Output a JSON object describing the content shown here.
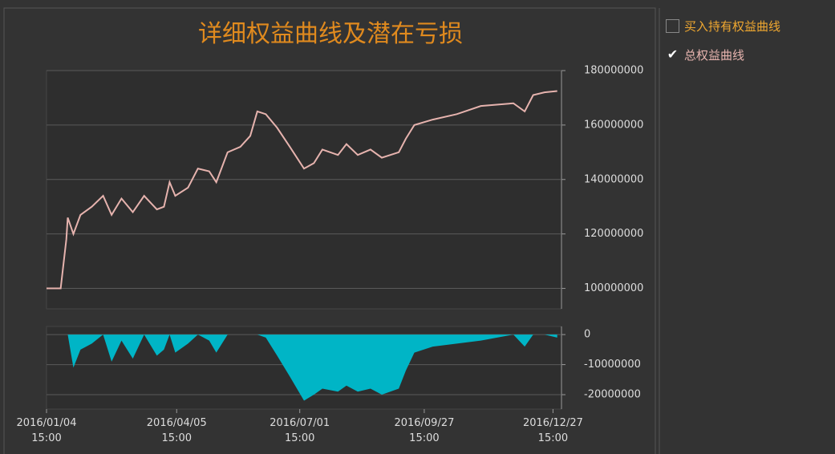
{
  "chart_data": [
    {
      "type": "line",
      "title": "详细权益曲线及潜在亏损",
      "x": [
        "2016-01-04",
        "2016-01-14",
        "2016-01-18",
        "2016-01-19",
        "2016-01-23",
        "2016-01-28",
        "2016-02-05",
        "2016-02-13",
        "2016-02-19",
        "2016-02-26",
        "2016-03-05",
        "2016-03-13",
        "2016-03-22",
        "2016-03-27",
        "2016-03-31",
        "2016-04-04",
        "2016-04-13",
        "2016-04-20",
        "2016-04-28",
        "2016-05-03",
        "2016-05-11",
        "2016-05-20",
        "2016-05-27",
        "2016-06-01",
        "2016-06-07",
        "2016-06-15",
        "2016-06-24",
        "2016-07-04",
        "2016-07-11",
        "2016-07-17",
        "2016-07-28",
        "2016-08-03",
        "2016-08-11",
        "2016-08-20",
        "2016-08-28",
        "2016-09-09",
        "2016-09-14",
        "2016-09-20",
        "2016-10-03",
        "2016-10-20",
        "2016-11-06",
        "2016-11-29",
        "2016-12-07",
        "2016-12-13",
        "2016-12-21",
        "2016-12-30"
      ],
      "series": [
        {
          "name": "总权益曲线",
          "color": "#e6b3ae",
          "values": [
            100000000,
            100000000,
            118000000,
            126000000,
            120000000,
            127000000,
            130000000,
            134000000,
            127000000,
            133000000,
            128000000,
            134000000,
            129000000,
            130000000,
            139000000,
            134000000,
            137000000,
            144000000,
            143000000,
            139000000,
            150000000,
            152000000,
            156000000,
            165000000,
            164000000,
            159000000,
            152000000,
            144000000,
            146000000,
            151000000,
            149000000,
            153000000,
            149000000,
            151000000,
            148000000,
            150000000,
            155000000,
            160000000,
            162000000,
            164000000,
            167000000,
            168000000,
            165000000,
            171000000,
            172000000,
            172500000
          ]
        }
      ],
      "xlim": [
        "2016-01-04",
        "2017-01-02"
      ],
      "ylim": [
        92500000,
        180000000
      ],
      "yticks": [
        100000000,
        120000000,
        140000000,
        160000000,
        180000000
      ],
      "grid": true
    },
    {
      "type": "area",
      "x": [
        "2016-01-04",
        "2016-01-14",
        "2016-01-18",
        "2016-01-19",
        "2016-01-23",
        "2016-01-28",
        "2016-02-05",
        "2016-02-13",
        "2016-02-19",
        "2016-02-26",
        "2016-03-05",
        "2016-03-13",
        "2016-03-22",
        "2016-03-27",
        "2016-03-31",
        "2016-04-04",
        "2016-04-13",
        "2016-04-20",
        "2016-04-28",
        "2016-05-03",
        "2016-05-11",
        "2016-05-20",
        "2016-05-27",
        "2016-06-01",
        "2016-06-07",
        "2016-06-15",
        "2016-06-24",
        "2016-07-04",
        "2016-07-11",
        "2016-07-17",
        "2016-07-28",
        "2016-08-03",
        "2016-08-11",
        "2016-08-20",
        "2016-08-28",
        "2016-09-09",
        "2016-09-14",
        "2016-09-20",
        "2016-10-03",
        "2016-10-20",
        "2016-11-06",
        "2016-11-29",
        "2016-12-07",
        "2016-12-13",
        "2016-12-21",
        "2016-12-30"
      ],
      "series": [
        {
          "color": "#00b5c6",
          "values": [
            0,
            0,
            0,
            0,
            -11000000,
            -5000000,
            -3000000,
            0,
            -9000000,
            -2000000,
            -8000000,
            0,
            -7000000,
            -5000000,
            0,
            -6000000,
            -3000000,
            0,
            -2000000,
            -6000000,
            0,
            0,
            0,
            0,
            -1000000,
            -7000000,
            -14000000,
            -22000000,
            -20000000,
            -18000000,
            -19000000,
            -17000000,
            -19000000,
            -18000000,
            -20000000,
            -18000000,
            -12000000,
            -6000000,
            -4000000,
            -3000000,
            -2000000,
            0,
            -4000000,
            0,
            0,
            -1000000
          ]
        }
      ],
      "xlim": [
        "2016-01-04",
        "2017-01-02"
      ],
      "ylim": [
        -24800000,
        2700000
      ],
      "yticks": [
        0,
        -10000000,
        -20000000
      ],
      "grid": true,
      "xticks": [
        {
          "value": "2016-01-04",
          "label": "2016/01/04 15:00"
        },
        {
          "value": "2016-04-05",
          "label": "2016/04/05 15:00"
        },
        {
          "value": "2016-07-01",
          "label": "2016/07/01 15:00"
        },
        {
          "value": "2016-09-27",
          "label": "2016/09/27 15:00"
        },
        {
          "value": "2016-12-27",
          "label": "2016/12/27 15:00"
        }
      ]
    }
  ],
  "legend": {
    "items": [
      {
        "label": "买入持有权益曲线",
        "checked": false,
        "color": "#f0a830"
      },
      {
        "label": "总权益曲线",
        "checked": true,
        "color": "#e6b3ae"
      }
    ]
  }
}
